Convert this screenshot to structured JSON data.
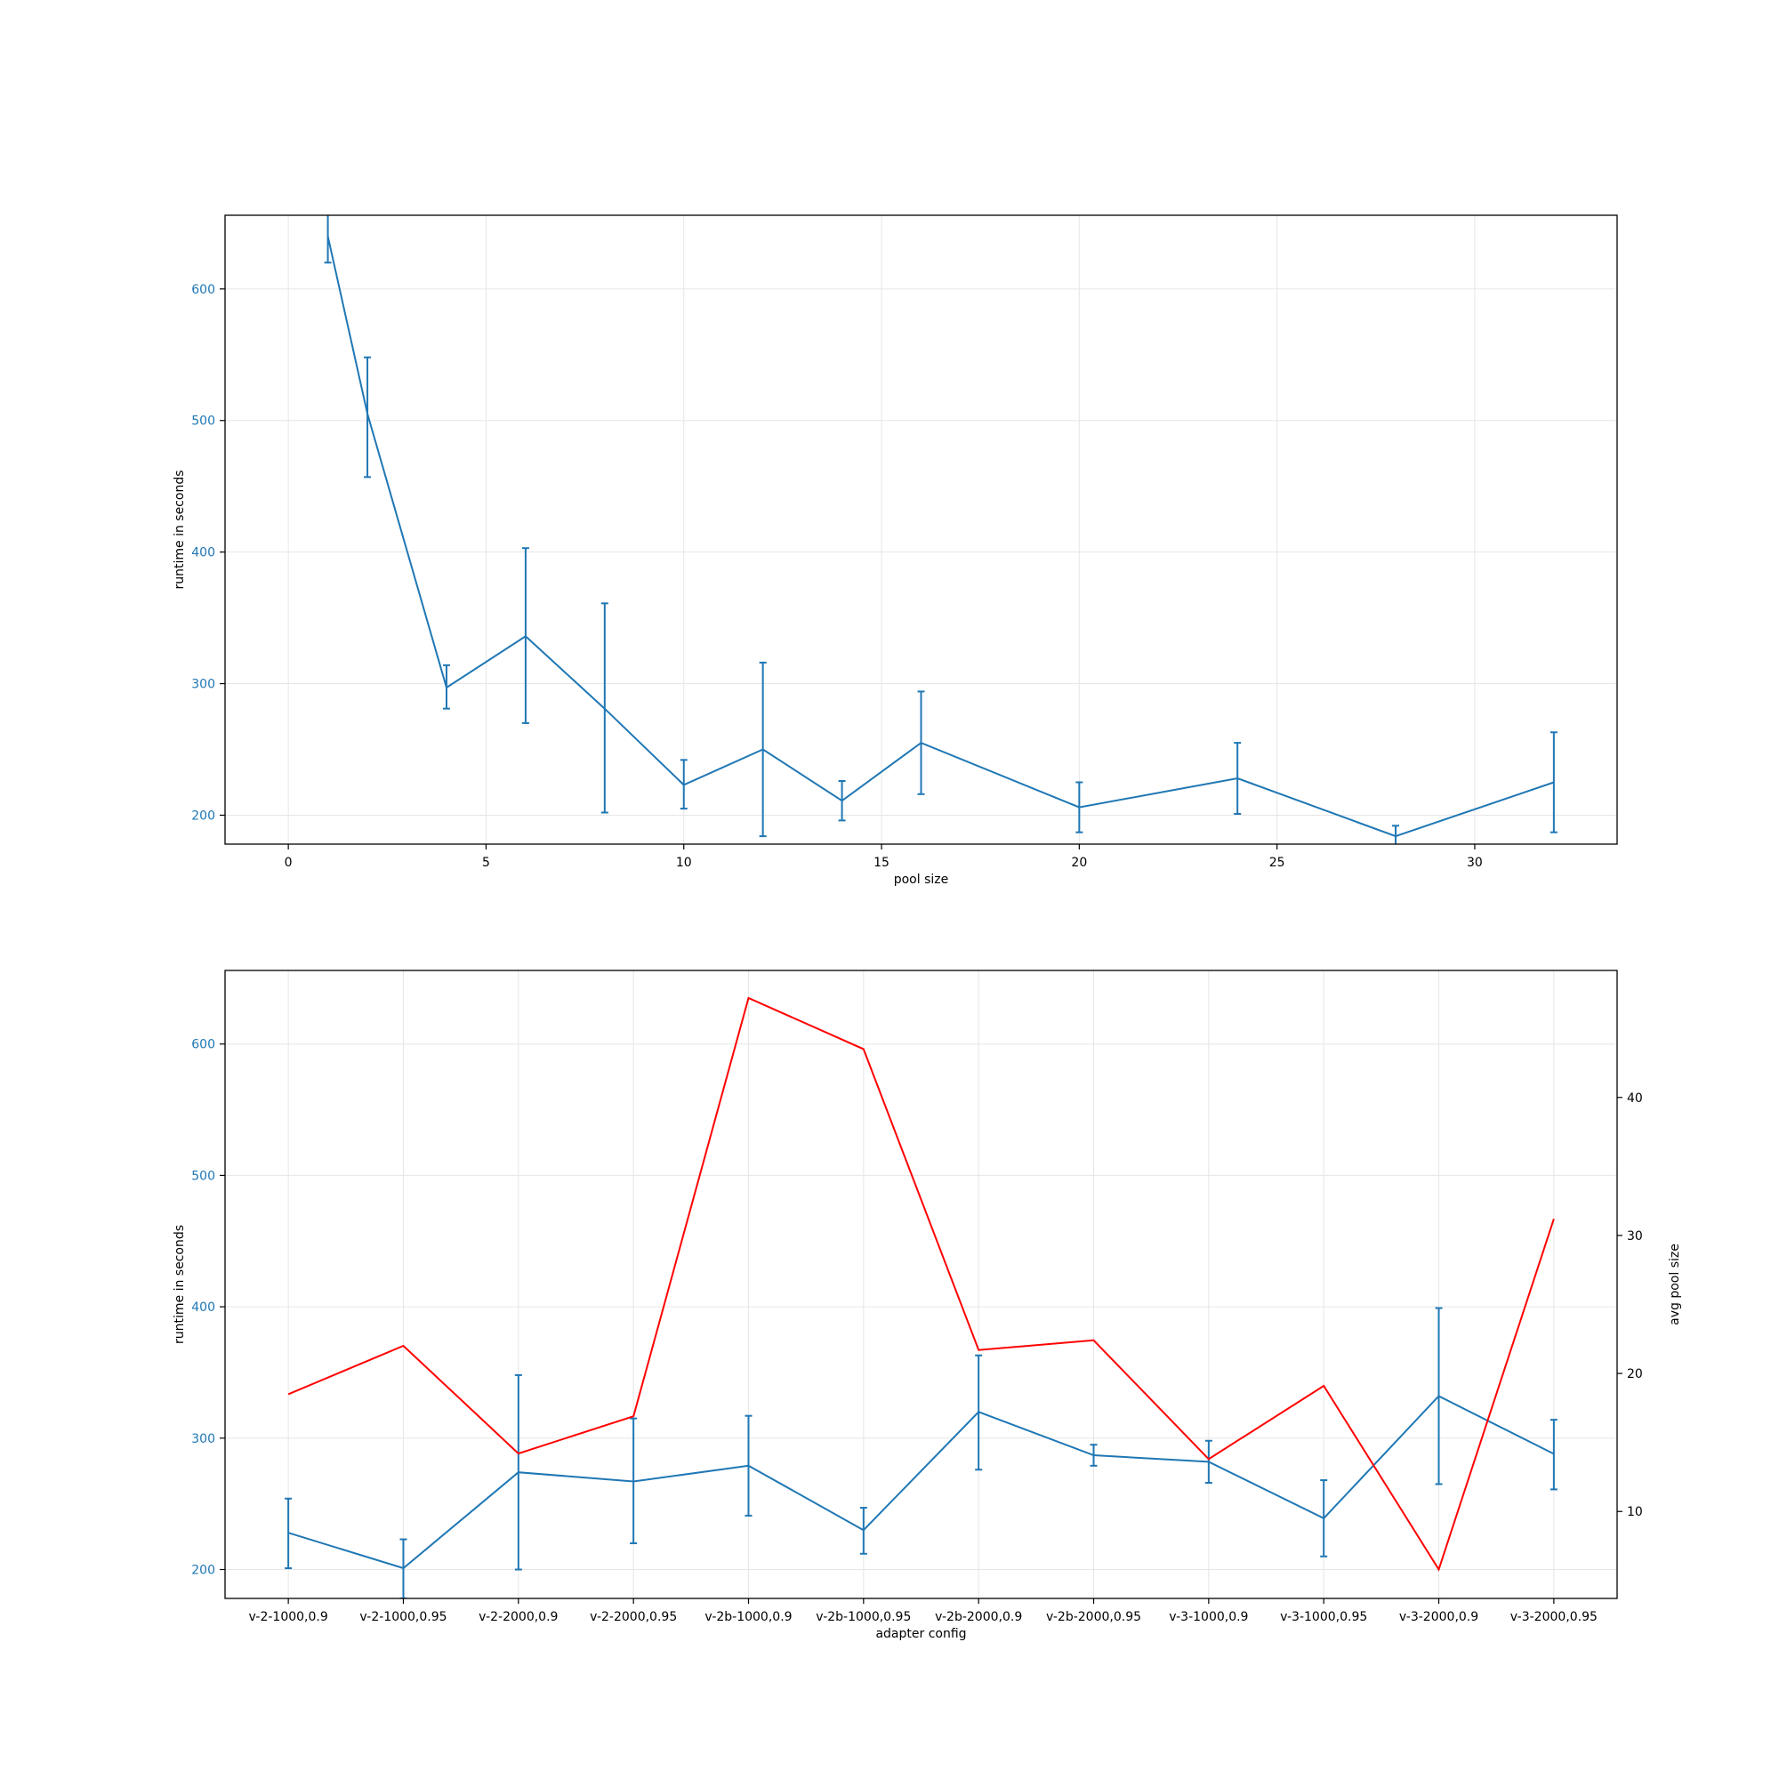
{
  "chart_data": [
    {
      "type": "line",
      "title": "",
      "xlabel": "pool size",
      "ylabel": "runtime in seconds",
      "xlim": [
        -1.6,
        33.6
      ],
      "ylim": [
        178,
        656
      ],
      "xticks": [
        0,
        5,
        10,
        15,
        20,
        25,
        30
      ],
      "yticks": [
        200,
        300,
        400,
        500,
        600
      ],
      "grid": true,
      "series": [
        {
          "color": "#1f77b4",
          "x": [
            1,
            2,
            4,
            6,
            8,
            10,
            12,
            14,
            16,
            20,
            24,
            28,
            32
          ],
          "values": [
            640,
            505,
            297,
            336,
            281,
            223,
            250,
            211,
            255,
            206,
            228,
            184,
            225
          ],
          "err_low": [
            620,
            457,
            281,
            270,
            202,
            205,
            184,
            196,
            216,
            187,
            201,
            177,
            187
          ],
          "err_high": [
            660,
            548,
            314,
            403,
            361,
            242,
            316,
            226,
            294,
            225,
            255,
            192,
            263
          ]
        }
      ]
    },
    {
      "type": "line",
      "title": "",
      "xlabel": "adapter config",
      "ylabel": "runtime in seconds",
      "y2label": "avg pool size",
      "categories": [
        "v-2-1000,0.9",
        "v-2-1000,0.95",
        "v-2-2000,0.9",
        "v-2-2000,0.95",
        "v-2b-1000,0.9",
        "v-2b-1000,0.95",
        "v-2b-2000,0.9",
        "v-2b-2000,0.95",
        "v-3-1000,0.9",
        "v-3-1000,0.95",
        "v-3-2000,0.9",
        "v-3-2000,0.95"
      ],
      "ylim": [
        178,
        656
      ],
      "y2lim": [
        3.7,
        49.2
      ],
      "yticks": [
        200,
        300,
        400,
        500,
        600
      ],
      "y2ticks": [
        10,
        20,
        30,
        40
      ],
      "grid": true,
      "series": [
        {
          "axis": "left",
          "color": "#1f77b4",
          "values": [
            228,
            201,
            274,
            267,
            279,
            230,
            320,
            287,
            282,
            239,
            332,
            288
          ],
          "err_low": [
            201,
            178,
            200,
            220,
            241,
            212,
            276,
            279,
            266,
            210,
            265,
            261
          ],
          "err_high": [
            254,
            223,
            348,
            315,
            317,
            247,
            363,
            295,
            298,
            268,
            399,
            314
          ]
        },
        {
          "axis": "right",
          "color": "#ff0000",
          "values": [
            18.5,
            22,
            14.2,
            16.9,
            47.2,
            43.5,
            21.7,
            22.4,
            13.8,
            19.1,
            5.8,
            31.2
          ]
        }
      ]
    }
  ]
}
